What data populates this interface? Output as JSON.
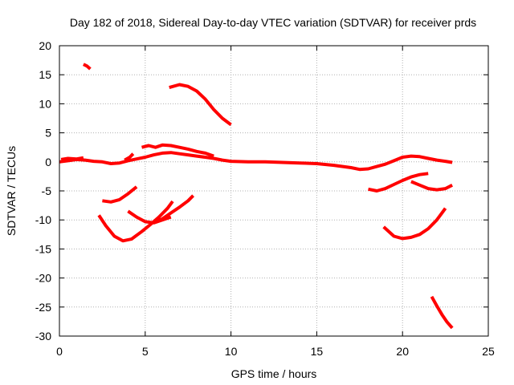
{
  "chart_data": {
    "type": "line",
    "title": "Day 182 of 2018, Sidereal Day-to-day VTEC variation (SDTVAR) for receiver prds",
    "xlabel": "GPS time / hours",
    "ylabel": "SDTVAR / TECUs",
    "xlim": [
      0,
      25
    ],
    "ylim": [
      -30,
      20
    ],
    "xticks": [
      0,
      5,
      10,
      15,
      20,
      25
    ],
    "yticks": [
      20,
      15,
      10,
      5,
      0,
      -5,
      -10,
      -15,
      -20,
      -25,
      -30
    ],
    "xtick_labels": [
      "0",
      "5",
      "10",
      "15",
      "20",
      "25"
    ],
    "ytick_labels": [
      "20",
      "15",
      "10",
      "5",
      "0",
      "-5",
      "-10",
      "-15",
      "-20",
      "-25",
      "-30"
    ],
    "grid": true,
    "color": "#ff0000",
    "series": [
      {
        "name": "main",
        "points": [
          [
            0,
            0
          ],
          [
            0.5,
            0.2
          ],
          [
            1,
            0.4
          ],
          [
            1.5,
            0.3
          ],
          [
            2,
            0.1
          ],
          [
            2.5,
            0
          ],
          [
            3,
            -0.3
          ],
          [
            3.5,
            -0.2
          ],
          [
            4,
            0.2
          ],
          [
            4.5,
            0.5
          ],
          [
            5,
            0.8
          ],
          [
            5.5,
            1.2
          ],
          [
            6,
            1.5
          ],
          [
            6.5,
            1.6
          ],
          [
            7,
            1.4
          ],
          [
            7.5,
            1.2
          ],
          [
            8,
            1
          ],
          [
            8.5,
            0.8
          ],
          [
            9,
            0.6
          ],
          [
            9.5,
            0.3
          ],
          [
            10,
            0.1
          ],
          [
            11,
            0
          ],
          [
            12,
            0
          ],
          [
            13,
            -0.1
          ],
          [
            14,
            -0.2
          ],
          [
            15,
            -0.3
          ],
          [
            16,
            -0.6
          ],
          [
            17,
            -1
          ],
          [
            17.5,
            -1.3
          ],
          [
            18,
            -1.2
          ],
          [
            18.5,
            -0.8
          ],
          [
            19,
            -0.4
          ],
          [
            19.5,
            0.2
          ],
          [
            20,
            0.8
          ],
          [
            20.5,
            1
          ],
          [
            21,
            0.9
          ],
          [
            21.5,
            0.6
          ],
          [
            22,
            0.3
          ],
          [
            22.5,
            0.1
          ],
          [
            22.9,
            -0.1
          ]
        ]
      },
      {
        "name": "bump-upper",
        "points": [
          [
            4.8,
            2.5
          ],
          [
            5.2,
            2.8
          ],
          [
            5.6,
            2.5
          ],
          [
            6,
            2.9
          ],
          [
            6.5,
            2.8
          ],
          [
            7,
            2.5
          ],
          [
            7.5,
            2.2
          ],
          [
            8,
            1.8
          ],
          [
            8.5,
            1.5
          ],
          [
            9,
            1
          ]
        ]
      },
      {
        "name": "rise-early",
        "points": [
          [
            3.8,
            0.3
          ],
          [
            4.1,
            0.8
          ],
          [
            4.3,
            1.4
          ]
        ]
      },
      {
        "name": "start-upper",
        "points": [
          [
            0.1,
            0.4
          ],
          [
            0.5,
            0.6
          ],
          [
            1,
            0.5
          ],
          [
            1.4,
            0.7
          ]
        ]
      },
      {
        "name": "seg-16",
        "points": [
          [
            1.4,
            16.8
          ],
          [
            1.6,
            16.5
          ],
          [
            1.8,
            16
          ]
        ]
      },
      {
        "name": "arc-13",
        "points": [
          [
            6.4,
            12.8
          ],
          [
            7,
            13.3
          ],
          [
            7.5,
            13
          ],
          [
            8,
            12.2
          ],
          [
            8.5,
            10.8
          ],
          [
            9,
            9
          ],
          [
            9.5,
            7.5
          ],
          [
            10,
            6.4
          ]
        ]
      },
      {
        "name": "seg-m6",
        "points": [
          [
            2.5,
            -6.7
          ],
          [
            3,
            -6.9
          ],
          [
            3.5,
            -6.5
          ],
          [
            4,
            -5.5
          ],
          [
            4.5,
            -4.3
          ]
        ]
      },
      {
        "name": "curve-m10",
        "points": [
          [
            4,
            -8.5
          ],
          [
            4.5,
            -9.5
          ],
          [
            5,
            -10.3
          ],
          [
            5.5,
            -10.5
          ],
          [
            6,
            -10
          ],
          [
            6.5,
            -9.5
          ]
        ]
      },
      {
        "name": "bowl-m13",
        "points": [
          [
            2.3,
            -9.2
          ],
          [
            2.7,
            -11
          ],
          [
            3.2,
            -12.8
          ],
          [
            3.7,
            -13.6
          ],
          [
            4.2,
            -13.3
          ],
          [
            4.8,
            -12
          ],
          [
            5.3,
            -10.8
          ],
          [
            5.8,
            -9.5
          ],
          [
            6.3,
            -8
          ],
          [
            6.6,
            -6.8
          ]
        ]
      },
      {
        "name": "line-m10",
        "points": [
          [
            5.5,
            -10.4
          ],
          [
            6,
            -9.8
          ],
          [
            6.5,
            -8.8
          ],
          [
            7,
            -7.8
          ],
          [
            7.5,
            -6.7
          ],
          [
            7.8,
            -5.8
          ]
        ]
      },
      {
        "name": "late-m4",
        "points": [
          [
            18,
            -4.7
          ],
          [
            18.5,
            -5
          ],
          [
            19,
            -4.6
          ],
          [
            19.5,
            -3.9
          ],
          [
            20,
            -3.2
          ],
          [
            20.5,
            -2.6
          ],
          [
            21,
            -2.2
          ],
          [
            21.5,
            -2
          ]
        ]
      },
      {
        "name": "late-m4b",
        "points": [
          [
            20.5,
            -3.4
          ],
          [
            21,
            -4
          ],
          [
            21.5,
            -4.6
          ],
          [
            22,
            -4.8
          ],
          [
            22.5,
            -4.6
          ],
          [
            22.9,
            -4
          ]
        ]
      },
      {
        "name": "late-m13",
        "points": [
          [
            18.9,
            -11.2
          ],
          [
            19.5,
            -12.8
          ],
          [
            20,
            -13.2
          ],
          [
            20.5,
            -13
          ],
          [
            21,
            -12.5
          ],
          [
            21.5,
            -11.5
          ],
          [
            22,
            -10
          ],
          [
            22.5,
            -8
          ]
        ]
      },
      {
        "name": "late-m26",
        "points": [
          [
            21.7,
            -23.2
          ],
          [
            22,
            -24.8
          ],
          [
            22.3,
            -26.3
          ],
          [
            22.6,
            -27.6
          ],
          [
            22.9,
            -28.6
          ]
        ]
      }
    ]
  }
}
